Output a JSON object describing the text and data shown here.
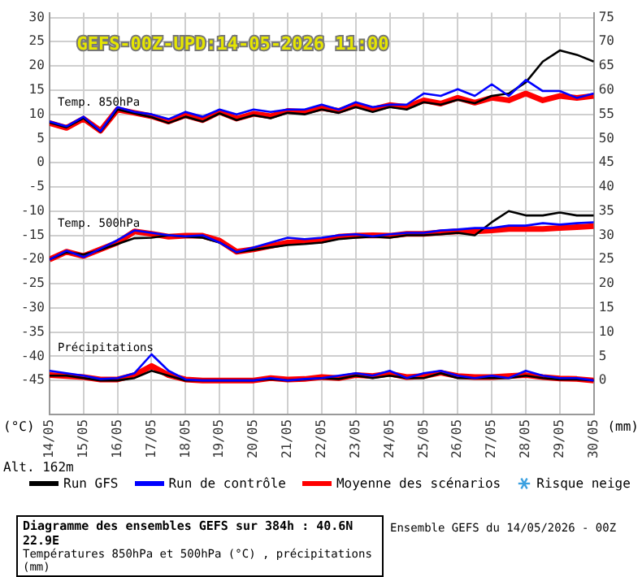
{
  "chart_data": {
    "type": "line",
    "title": "Diagramme des ensembles GEFS sur 384h : 40.6N 22.9E",
    "subtitle": "Températures 850hPa et 500hPa (°C) , précipitations (mm)",
    "ylabel": "(°C)",
    "y2label": "(mm)",
    "annotations": [
      "GEFS-00Z-UPD:14-05-2026 11:00",
      "Temp. 850hPa",
      "Temp. 500hPa",
      "Précipitations",
      "Alt. 162m",
      "Risque neige",
      "Ensemble GEFS du 14/05/2026 - 00Z"
    ],
    "x": [
      "2026-05-14T00:00",
      "2026-05-14T12:00",
      "2026-05-15T00:00",
      "2026-05-15T12:00",
      "2026-05-16T00:00",
      "2026-05-16T12:00",
      "2026-05-17T00:00",
      "2026-05-17T12:00",
      "2026-05-18T00:00",
      "2026-05-18T12:00",
      "2026-05-19T00:00",
      "2026-05-19T12:00",
      "2026-05-20T00:00",
      "2026-05-20T12:00",
      "2026-05-21T00:00",
      "2026-05-21T12:00",
      "2026-05-22T00:00",
      "2026-05-22T12:00",
      "2026-05-23T00:00",
      "2026-05-23T12:00",
      "2026-05-24T00:00",
      "2026-05-24T12:00",
      "2026-05-25T00:00",
      "2026-05-25T12:00",
      "2026-05-26T00:00",
      "2026-05-26T12:00",
      "2026-05-27T00:00",
      "2026-05-27T12:00",
      "2026-05-28T00:00",
      "2026-05-28T12:00",
      "2026-05-29T00:00",
      "2026-05-29T12:00",
      "2026-05-30T00:00"
    ],
    "xlim": [
      "2026-05-14",
      "2026-05-30"
    ],
    "xticks": [
      {
        "value": "2026-05-14",
        "label": "14/05"
      },
      {
        "value": "2026-05-15",
        "label": "15/05"
      },
      {
        "value": "2026-05-16",
        "label": "16/05"
      },
      {
        "value": "2026-05-17",
        "label": "17/05"
      },
      {
        "value": "2026-05-18",
        "label": "18/05"
      },
      {
        "value": "2026-05-19",
        "label": "19/05"
      },
      {
        "value": "2026-05-20",
        "label": "20/05"
      },
      {
        "value": "2026-05-21",
        "label": "21/05"
      },
      {
        "value": "2026-05-22",
        "label": "22/05"
      },
      {
        "value": "2026-05-23",
        "label": "23/05"
      },
      {
        "value": "2026-05-24",
        "label": "24/05"
      },
      {
        "value": "2026-05-25",
        "label": "25/05"
      },
      {
        "value": "2026-05-26",
        "label": "26/05"
      },
      {
        "value": "2026-05-27",
        "label": "27/05"
      },
      {
        "value": "2026-05-28",
        "label": "28/05"
      },
      {
        "value": "2026-05-29",
        "label": "29/05"
      },
      {
        "value": "2026-05-30",
        "label": "30/05"
      }
    ],
    "ylim": [
      -52,
      31
    ],
    "yticks": [
      -45,
      -40,
      -35,
      -30,
      -25,
      -20,
      -15,
      -10,
      -5,
      0,
      5,
      10,
      15,
      20,
      25,
      30
    ],
    "y2lim": [
      -7,
      76
    ],
    "y2ticks": [
      0,
      5,
      10,
      15,
      20,
      25,
      30,
      35,
      40,
      45,
      50,
      55,
      60,
      65,
      70,
      75
    ],
    "grid": true,
    "legend": "bottom",
    "marker": "none",
    "line_style": "solid",
    "series": [
      {
        "name": "Run GFS",
        "color": "#000000",
        "values": [
          8.3,
          7.3,
          9.2,
          6.4,
          11,
          10.2,
          9.4,
          8.2,
          9.5,
          8.5,
          10.2,
          8.8,
          9.8,
          9.2,
          10.3,
          10,
          11,
          10.3,
          11.5,
          10.5,
          11.5,
          11,
          12.5,
          12,
          13,
          12.3,
          13.8,
          14.3,
          16.6,
          20.9,
          23.2,
          22.3,
          20.9
        ]
      },
      {
        "name": "Run de contrôle",
        "color": "#0000ff",
        "values": [
          8.5,
          7.5,
          9.5,
          6.5,
          11.5,
          10.5,
          10,
          9,
          10.5,
          9.5,
          11,
          10,
          11,
          10.5,
          11,
          11,
          12,
          11,
          12.5,
          11.5,
          12,
          12,
          14.3,
          13.8,
          15.2,
          13.8,
          16.2,
          13.8,
          17.1,
          14.8,
          14.8,
          13.4,
          14.3
        ]
      },
      {
        "name": "Moyenne des scénarios",
        "color": "#ff0000",
        "values": [
          8.2,
          7.2,
          9.1,
          6.6,
          11,
          10.3,
          9.6,
          8.5,
          9.8,
          8.8,
          10.5,
          9.1,
          10.1,
          9.6,
          10.7,
          10.5,
          11.3,
          10.7,
          11.9,
          11,
          11.9,
          11.5,
          12.9,
          12.2,
          13.4,
          12.4,
          13.4,
          12.9,
          14.3,
          12.9,
          13.8,
          13.4,
          13.8
        ]
      },
      {
        "color": "#000000",
        "values": [
          -20,
          -18.5,
          -19,
          -18,
          -16.8,
          -15.6,
          -15.5,
          -15,
          -15.3,
          -15.5,
          -16.5,
          -18.5,
          -18,
          -17.5,
          -17,
          -16.8,
          -16.5,
          -15.8,
          -15.5,
          -15.3,
          -15.5,
          -15,
          -15,
          -14.8,
          -14.5,
          -15,
          -12.3,
          -10,
          -10.9,
          -10.9,
          -10.3,
          -10.9,
          -10.9
        ]
      },
      {
        "color": "#0000ff",
        "values": [
          -20,
          -18.2,
          -19.5,
          -17.8,
          -16,
          -14,
          -14.5,
          -15,
          -15.2,
          -15,
          -16.5,
          -18.5,
          -17.5,
          -16.5,
          -15.5,
          -15.8,
          -15.5,
          -15,
          -14.8,
          -15.2,
          -14.8,
          -14.5,
          -14.5,
          -14,
          -13.8,
          -13.5,
          -13.5,
          -13,
          -13,
          -12.5,
          -12.8,
          -12.5,
          -12.3
        ]
      },
      {
        "color": "#ff0000",
        "values": [
          -20,
          -18.4,
          -19.3,
          -17.9,
          -16.5,
          -14.2,
          -14.7,
          -15.3,
          -15.1,
          -15.1,
          -16.1,
          -18.4,
          -17.9,
          -17.2,
          -16.5,
          -16.3,
          -16.1,
          -15.3,
          -15.1,
          -15,
          -15.1,
          -14.7,
          -14.7,
          -14.4,
          -14.2,
          -14.2,
          -14,
          -13.7,
          -13.7,
          -13.7,
          -13.5,
          -13.3,
          -13.1
        ]
      },
      {
        "color": "#000000",
        "axis": "y2",
        "values": [
          1,
          1,
          0.5,
          0,
          0,
          0.5,
          2,
          1,
          0,
          0,
          0,
          0,
          0,
          0.3,
          0,
          0.2,
          0.5,
          0.3,
          1,
          0.5,
          1,
          0.5,
          0.5,
          1.5,
          0.5,
          0.5,
          0.5,
          0.5,
          1,
          0.5,
          0.2,
          0.2,
          0
        ]
      },
      {
        "color": "#0000ff",
        "axis": "y2",
        "values": [
          2,
          1.5,
          1,
          0.3,
          0.5,
          1.5,
          5.4,
          2,
          0.2,
          0,
          0,
          0,
          0,
          0.5,
          0,
          0.3,
          0.5,
          1,
          1.5,
          1,
          2,
          0.5,
          1.5,
          2,
          1,
          0.5,
          1,
          0.5,
          2,
          1,
          0.5,
          0.5,
          0
        ]
      },
      {
        "color": "#ff0000",
        "axis": "y2",
        "values": [
          1.1,
          0.9,
          0.7,
          0.2,
          0.2,
          1.1,
          3,
          1.1,
          0.2,
          0,
          0,
          0,
          0,
          0.5,
          0.2,
          0.3,
          0.7,
          0.5,
          1.1,
          0.9,
          1.4,
          0.7,
          0.9,
          1.6,
          0.9,
          0.7,
          0.7,
          0.9,
          1.1,
          0.7,
          0.4,
          0.3,
          0
        ]
      }
    ]
  }
}
